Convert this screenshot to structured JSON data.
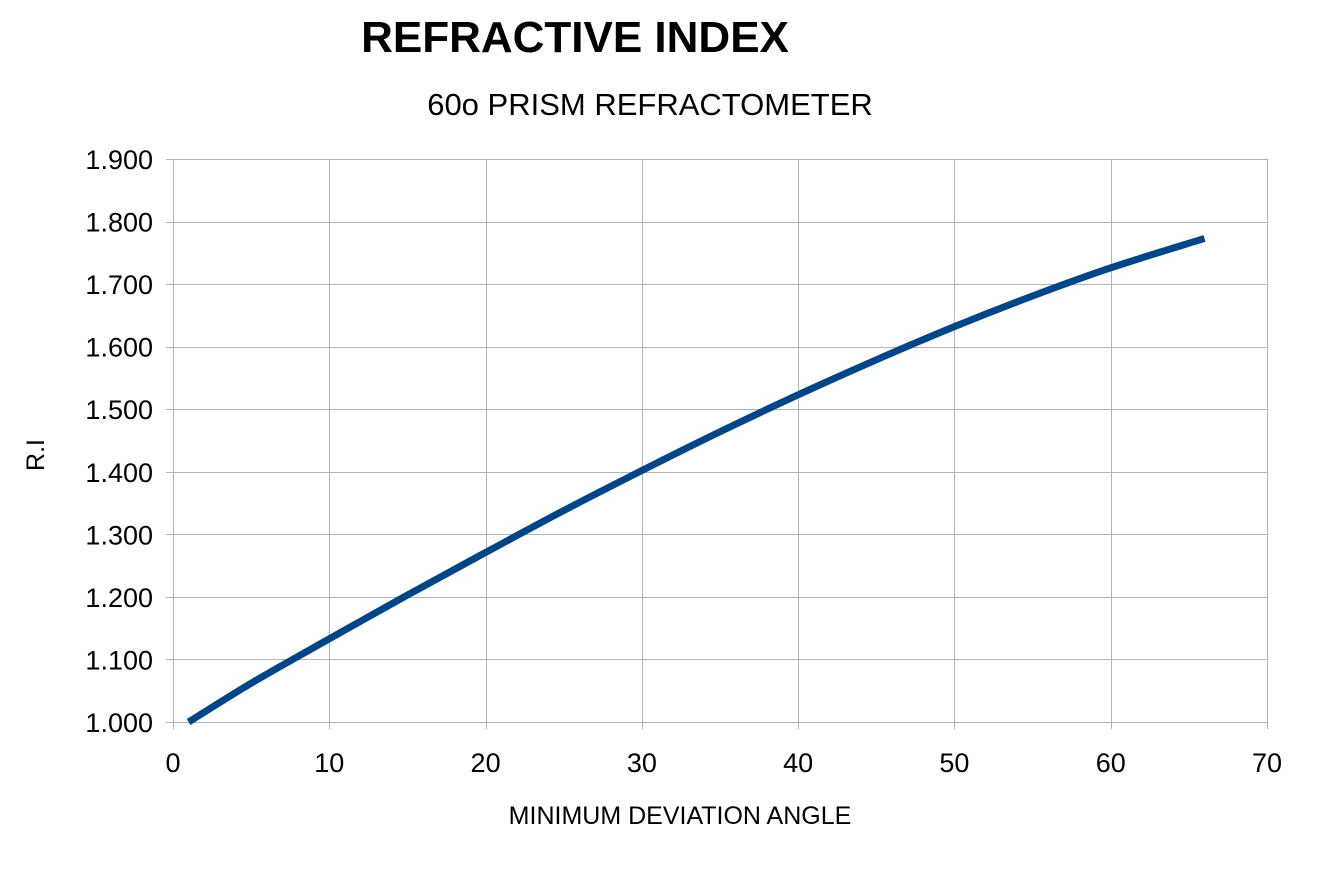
{
  "chart_data": {
    "type": "line",
    "title": "REFRACTIVE INDEX",
    "subtitle": "60o PRISM REFRACTOMETER",
    "xlabel": "MINIMUM DEVIATION ANGLE",
    "ylabel": "R.I",
    "xlim": [
      0,
      70
    ],
    "ylim": [
      1.0,
      1.9
    ],
    "x_ticks": [
      "0",
      "10",
      "20",
      "30",
      "40",
      "50",
      "60",
      "70"
    ],
    "x_tick_values": [
      0,
      10,
      20,
      30,
      40,
      50,
      60,
      70
    ],
    "y_ticks": [
      "1.000",
      "1.100",
      "1.200",
      "1.300",
      "1.400",
      "1.500",
      "1.600",
      "1.700",
      "1.800",
      "1.900"
    ],
    "y_tick_values": [
      1.0,
      1.1,
      1.2,
      1.3,
      1.4,
      1.5,
      1.6,
      1.7,
      1.8,
      1.9
    ],
    "grid": true,
    "legend": "none",
    "series": [
      {
        "color": "#004586",
        "x": [
          1,
          5,
          10,
          15,
          20,
          25,
          30,
          35,
          40,
          45,
          50,
          55,
          60,
          66
        ],
        "y": [
          1.0,
          1.062,
          1.133,
          1.203,
          1.271,
          1.338,
          1.402,
          1.464,
          1.523,
          1.579,
          1.632,
          1.681,
          1.726,
          1.773
        ]
      }
    ]
  }
}
